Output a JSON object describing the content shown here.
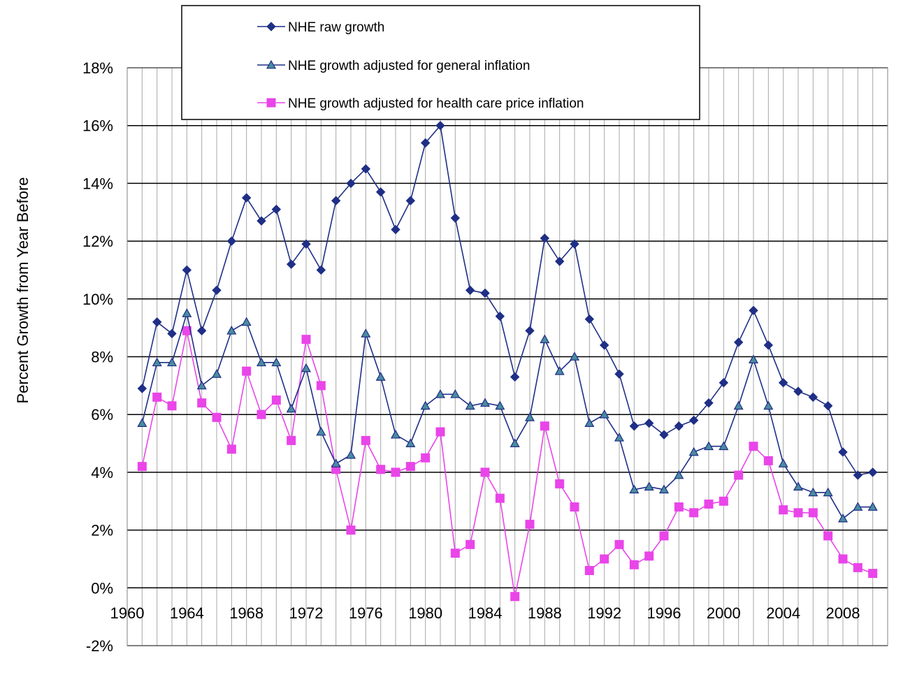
{
  "chart_data": {
    "type": "line",
    "title": "",
    "xlabel": "",
    "ylabel": "Percent Growth from Year Before",
    "xlim": [
      1960,
      2011
    ],
    "ylim": [
      -2,
      18
    ],
    "x_ticks": [
      "1960",
      "1964",
      "1968",
      "1972",
      "1976",
      "1980",
      "1984",
      "1988",
      "1992",
      "1996",
      "2000",
      "2004",
      "2008"
    ],
    "y_ticks": [
      "-2%",
      "0%",
      "2%",
      "4%",
      "6%",
      "8%",
      "10%",
      "12%",
      "14%",
      "16%",
      "18%"
    ],
    "grid": true,
    "legend_position": "top-left",
    "x": [
      1961,
      1962,
      1963,
      1964,
      1965,
      1966,
      1967,
      1968,
      1969,
      1970,
      1971,
      1972,
      1973,
      1974,
      1975,
      1976,
      1977,
      1978,
      1979,
      1980,
      1981,
      1982,
      1983,
      1984,
      1985,
      1986,
      1987,
      1988,
      1989,
      1990,
      1991,
      1992,
      1993,
      1994,
      1995,
      1996,
      1997,
      1998,
      1999,
      2000,
      2001,
      2002,
      2003,
      2004,
      2005,
      2006,
      2007,
      2008,
      2009,
      2010
    ],
    "series": [
      {
        "name": "NHE raw growth",
        "color": "#1f2f86",
        "marker": "diamond",
        "values": [
          6.9,
          9.2,
          8.8,
          11.0,
          8.9,
          10.3,
          12.0,
          13.5,
          12.7,
          13.1,
          11.2,
          11.9,
          11.0,
          13.4,
          14.0,
          14.5,
          13.7,
          12.4,
          13.4,
          15.4,
          16.0,
          12.8,
          10.3,
          10.2,
          9.4,
          7.3,
          8.9,
          12.1,
          11.3,
          11.9,
          9.3,
          8.4,
          7.4,
          5.6,
          5.7,
          5.3,
          5.6,
          5.8,
          6.4,
          7.1,
          8.5,
          9.6,
          8.4,
          7.1,
          6.8,
          6.6,
          6.3,
          4.7,
          3.9,
          4.0
        ]
      },
      {
        "name": "NHE growth adjusted for general inflation",
        "color": "#1f2f86",
        "marker": "triangle",
        "values": [
          5.7,
          7.8,
          7.8,
          9.5,
          7.0,
          7.4,
          8.9,
          9.2,
          7.8,
          7.8,
          6.2,
          7.6,
          5.4,
          4.3,
          4.6,
          8.8,
          7.3,
          5.3,
          5.0,
          6.3,
          6.7,
          6.7,
          6.3,
          6.4,
          6.3,
          5.0,
          5.9,
          8.6,
          7.5,
          8.0,
          5.7,
          6.0,
          5.2,
          3.4,
          3.5,
          3.4,
          3.9,
          4.7,
          4.9,
          4.9,
          6.3,
          7.9,
          6.3,
          4.3,
          3.5,
          3.3,
          3.3,
          2.4,
          2.8,
          2.8
        ]
      },
      {
        "name": "NHE growth adjusted for health care price inflation",
        "color": "#e945e9",
        "marker": "square",
        "values": [
          4.2,
          6.6,
          6.3,
          8.9,
          6.4,
          5.9,
          4.8,
          7.5,
          6.0,
          6.5,
          5.1,
          8.6,
          7.0,
          4.1,
          2.0,
          5.1,
          4.1,
          4.0,
          4.2,
          4.5,
          5.4,
          1.2,
          1.5,
          4.0,
          3.1,
          -0.3,
          2.2,
          5.6,
          3.6,
          2.8,
          0.6,
          1.0,
          1.5,
          0.8,
          1.1,
          1.8,
          2.8,
          2.6,
          2.9,
          3.0,
          3.9,
          4.9,
          4.4,
          2.7,
          2.6,
          2.6,
          1.8,
          1.0,
          0.7,
          0.5
        ]
      }
    ]
  }
}
